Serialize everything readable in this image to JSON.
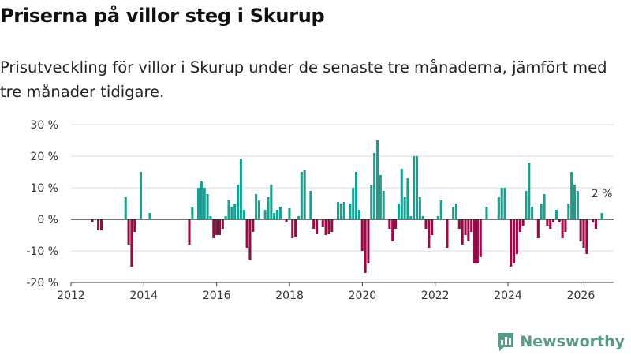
{
  "header": {
    "title": "Priserna på villor steg i Skurup",
    "subtitle": "Prisutveckling för villor i Skurup under de senaste tre månaderna, jämfört med tre månader tidigare."
  },
  "brand": {
    "name": "Newsworthy"
  },
  "colors": {
    "positive": "#1a9e8f",
    "negative": "#990a45",
    "grid": "#dddddd",
    "zero": "#222222",
    "brand": "#5a9a8a"
  },
  "chart_data": {
    "type": "bar",
    "title": "Priserna på villor steg i Skurup",
    "ylabel": "",
    "xlabel": "",
    "ylim": [
      -20,
      30
    ],
    "xlim": [
      2012.0,
      2026.9
    ],
    "yticks": [
      {
        "v": 30,
        "label": "30 %"
      },
      {
        "v": 20,
        "label": "20 %"
      },
      {
        "v": 10,
        "label": "10 %"
      },
      {
        "v": 0,
        "label": "0 %"
      },
      {
        "v": -10,
        "label": "-10 %"
      },
      {
        "v": -20,
        "label": "-20 %"
      }
    ],
    "xticks": [
      {
        "v": 2012,
        "label": "2012"
      },
      {
        "v": 2014,
        "label": "2014"
      },
      {
        "v": 2016,
        "label": "2016"
      },
      {
        "v": 2018,
        "label": "2018"
      },
      {
        "v": 2020,
        "label": "2020"
      },
      {
        "v": 2022,
        "label": "2022"
      },
      {
        "v": 2024,
        "label": "2024"
      },
      {
        "v": 2026,
        "label": "2026"
      }
    ],
    "annotation": {
      "text": "2 %",
      "value": 2
    },
    "series": [
      {
        "name": "Prisutveckling",
        "x_start": 2012.0,
        "x_step": 0.0833,
        "values": [
          0,
          0,
          0,
          0,
          0,
          0,
          0,
          -1,
          0,
          -3.5,
          -3.5,
          0,
          0,
          0,
          0,
          0,
          0,
          0,
          7,
          -8,
          -15,
          -4,
          0,
          15,
          0,
          0,
          2,
          0,
          0,
          0,
          0,
          0,
          0,
          0,
          0,
          0,
          0,
          0,
          0,
          -8,
          4,
          0,
          10,
          12,
          10,
          8,
          1,
          -6,
          -5,
          -5,
          -3,
          1,
          6,
          4,
          5,
          11,
          19,
          3,
          -9,
          -13,
          -4,
          8,
          6,
          0,
          3,
          7,
          11,
          2,
          3,
          4,
          0,
          -1,
          3.5,
          -6,
          -5.5,
          1,
          15,
          15.5,
          0,
          9,
          -3,
          -4.5,
          0,
          -2.5,
          -5,
          -4.5,
          -4,
          0,
          5.5,
          5,
          5.5,
          0,
          5,
          10,
          15,
          3,
          -10,
          -17,
          -14,
          11,
          21,
          25,
          14,
          9,
          0,
          -3,
          -7,
          -3,
          5,
          16,
          7,
          13,
          1,
          20,
          20,
          7,
          1,
          -3,
          -9,
          -5,
          0,
          1,
          6,
          0,
          -9,
          0,
          4,
          5,
          -3,
          -8,
          -5,
          -7,
          -4,
          -14,
          -14,
          -12,
          0,
          4,
          0,
          0,
          0,
          7,
          10,
          10,
          0,
          -15,
          -14,
          -11,
          -4,
          -2,
          9,
          18,
          4,
          0,
          -6,
          5,
          8,
          -2,
          -3,
          -1,
          3,
          -1,
          -6,
          -4,
          5,
          15,
          11,
          9,
          -7,
          -9,
          -11,
          0,
          -1,
          -3,
          0,
          2
        ]
      }
    ]
  }
}
